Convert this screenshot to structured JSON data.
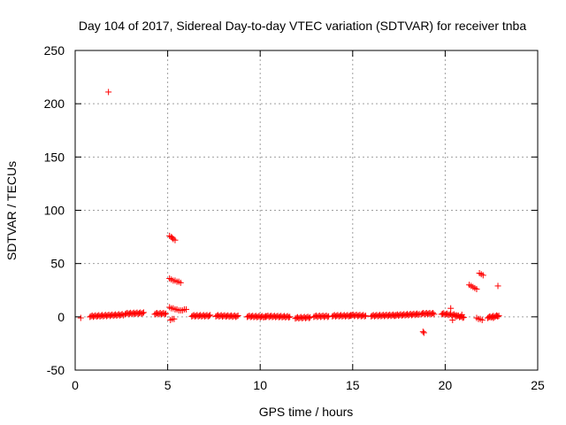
{
  "chart_data": {
    "type": "scatter",
    "title": "Day 104 of 2017, Sidereal Day-to-day VTEC variation (SDTVAR) for receiver tnba",
    "xlabel": "GPS time / hours",
    "ylabel": "SDTVAR / TECUs",
    "xlim": [
      0,
      25
    ],
    "ylim": [
      -50,
      250
    ],
    "x_ticks": [
      0,
      5,
      10,
      15,
      20,
      25
    ],
    "y_ticks": [
      -50,
      0,
      50,
      100,
      150,
      200,
      250
    ],
    "grid": true,
    "marker": "+",
    "color": "#ff0000",
    "points": [
      [
        0.3,
        -1
      ],
      [
        1.8,
        211
      ],
      [
        5.1,
        76
      ],
      [
        5.2,
        75
      ],
      [
        5.25,
        74
      ],
      [
        5.3,
        73
      ],
      [
        5.4,
        72
      ],
      [
        5.1,
        36
      ],
      [
        5.2,
        35
      ],
      [
        5.3,
        34
      ],
      [
        5.4,
        34
      ],
      [
        5.5,
        33
      ],
      [
        5.6,
        33
      ],
      [
        5.7,
        32
      ],
      [
        5.1,
        9
      ],
      [
        5.2,
        8
      ],
      [
        5.3,
        8
      ],
      [
        5.4,
        7
      ],
      [
        5.5,
        7
      ],
      [
        5.6,
        6
      ],
      [
        5.7,
        6
      ],
      [
        5.8,
        6
      ],
      [
        5.9,
        7
      ],
      [
        6.0,
        7
      ],
      [
        5.15,
        -3
      ],
      [
        5.25,
        -2
      ],
      [
        5.35,
        -2
      ],
      [
        18.8,
        -14
      ],
      [
        18.85,
        -15
      ],
      [
        20.3,
        8
      ],
      [
        20.4,
        -3
      ],
      [
        20.9,
        2
      ],
      [
        21.3,
        30
      ],
      [
        21.4,
        29
      ],
      [
        21.5,
        28
      ],
      [
        21.6,
        27
      ],
      [
        21.7,
        26
      ],
      [
        21.85,
        41
      ],
      [
        21.95,
        40
      ],
      [
        22.05,
        39
      ],
      [
        21.7,
        -1
      ],
      [
        21.8,
        -2
      ],
      [
        21.9,
        -2
      ],
      [
        22.0,
        -3
      ],
      [
        22.4,
        0
      ],
      [
        22.6,
        -1
      ],
      [
        22.8,
        1
      ],
      [
        22.85,
        29
      ]
    ],
    "dense_segments": [
      {
        "x_start": 0.8,
        "x_end": 2.6,
        "y_start": 0.5,
        "y_end": 2
      },
      {
        "x_start": 2.7,
        "x_end": 3.7,
        "y_start": 3,
        "y_end": 3.5
      },
      {
        "x_start": 4.3,
        "x_end": 4.9,
        "y_start": 3,
        "y_end": 3
      },
      {
        "x_start": 6.3,
        "x_end": 7.3,
        "y_start": 1,
        "y_end": 1
      },
      {
        "x_start": 7.6,
        "x_end": 8.8,
        "y_start": 1,
        "y_end": 0.5
      },
      {
        "x_start": 9.3,
        "x_end": 10.3,
        "y_start": 0.5,
        "y_end": 0
      },
      {
        "x_start": 10.3,
        "x_end": 11.6,
        "y_start": 0.5,
        "y_end": 0
      },
      {
        "x_start": 11.9,
        "x_end": 12.7,
        "y_start": -1,
        "y_end": -0.5
      },
      {
        "x_start": 12.9,
        "x_end": 13.7,
        "y_start": 0.5,
        "y_end": 0.5
      },
      {
        "x_start": 13.9,
        "x_end": 14.9,
        "y_start": 1,
        "y_end": 1
      },
      {
        "x_start": 14.9,
        "x_end": 15.7,
        "y_start": 1.5,
        "y_end": 1
      },
      {
        "x_start": 16.0,
        "x_end": 17.3,
        "y_start": 1,
        "y_end": 1.5
      },
      {
        "x_start": 17.3,
        "x_end": 18.6,
        "y_start": 1.5,
        "y_end": 2.5
      },
      {
        "x_start": 18.7,
        "x_end": 19.4,
        "y_start": 3,
        "y_end": 3
      },
      {
        "x_start": 19.8,
        "x_end": 20.6,
        "y_start": 3,
        "y_end": 1.5
      },
      {
        "x_start": 20.6,
        "x_end": 21.0,
        "y_start": 1,
        "y_end": -0.5
      },
      {
        "x_start": 22.3,
        "x_end": 22.9,
        "y_start": -0.5,
        "y_end": 1
      }
    ]
  }
}
